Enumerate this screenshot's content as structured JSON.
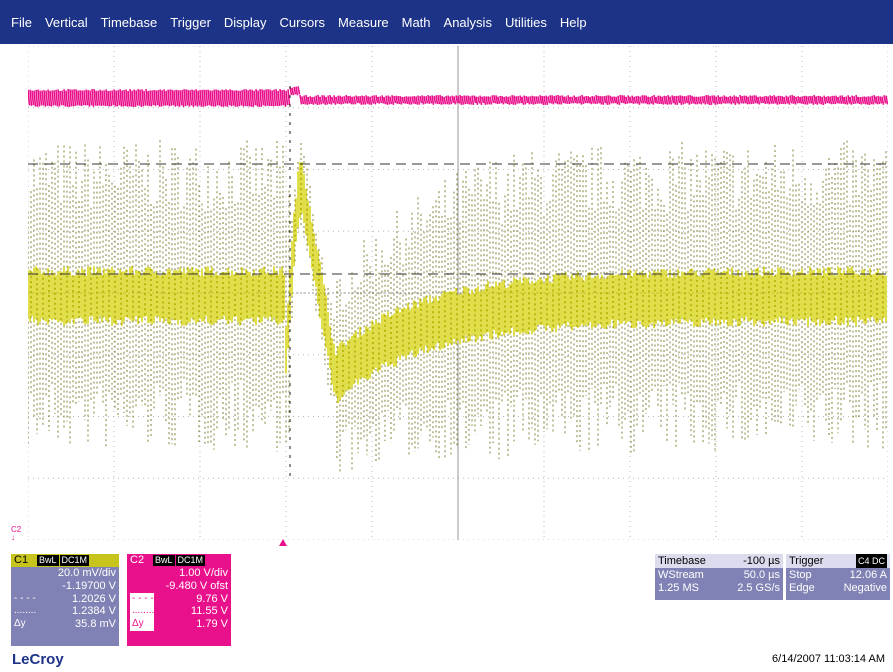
{
  "menu": [
    "File",
    "Vertical",
    "Timebase",
    "Trigger",
    "Display",
    "Cursors",
    "Measure",
    "Math",
    "Analysis",
    "Utilities",
    "Help"
  ],
  "colors": {
    "menubar": "#1c3387",
    "c1_trace": "#d4d000",
    "c2_trace": "#e9118b",
    "grid": "#b8b8b8",
    "panel": "#8081b4"
  },
  "c1": {
    "label": "C1",
    "tags": [
      "BwL",
      "DC1M"
    ],
    "vdiv": "20.0 mV/div",
    "offset": "-1.19700 V",
    "cursor1": "1.2026 V",
    "cursor2": "1.2384 V",
    "delta_label": "Δy",
    "delta": "35.8 mV"
  },
  "c2": {
    "label": "C2",
    "tags": [
      "BwL",
      "DC1M"
    ],
    "vdiv": "1.00 V/div",
    "offset": "-9.480 V ofst",
    "cursor1": "9.76 V",
    "cursor2": "11.55 V",
    "delta_label": "Δy",
    "delta": "1.79 V"
  },
  "cursor_line_symbols": [
    "- - - -",
    "........"
  ],
  "timebase": {
    "title": "Timebase",
    "delay": "-100 µs",
    "mode": "WStream",
    "tdiv": "50.0 µs",
    "samples": "1.25 MS",
    "rate": "2.5 GS/s"
  },
  "trigger": {
    "title": "Trigger",
    "source": "C4 DC",
    "state": "Stop",
    "level": "12.06 A",
    "type": "Edge",
    "slope": "Negative"
  },
  "channel_marker": "C2",
  "logo": "LeCroy",
  "timestamp": "6/14/2007 11:03:14 AM"
}
